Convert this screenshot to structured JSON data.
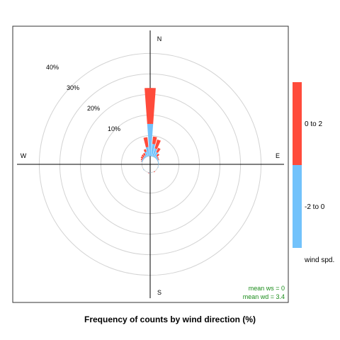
{
  "chart_data": {
    "type": "windrose",
    "title": "Frequency of counts by wind direction (%)",
    "direction_labels": {
      "north": "N",
      "east": "E",
      "south": "S",
      "west": "W"
    },
    "radial_ticks": [
      {
        "value": 10,
        "label": "10%"
      },
      {
        "value": 20,
        "label": "20%"
      },
      {
        "value": 30,
        "label": "30%"
      },
      {
        "value": 40,
        "label": "40%"
      }
    ],
    "radial_max": 50,
    "inner_offset": 4,
    "grid": true,
    "legend": {
      "title": "wind spd.",
      "position": "right",
      "entries": [
        {
          "label": "0 to 2",
          "color": "#FF4B3B"
        },
        {
          "label": "-2 to 0",
          "color": "#72C2FB"
        }
      ]
    },
    "series": [
      {
        "name": "-2 to 0",
        "color": "#72C2FB"
      },
      {
        "name": "0 to 2",
        "color": "#FF4B3B"
      }
    ],
    "sector_width_deg": 10,
    "sectors": [
      {
        "direction": 0,
        "values": [
          15.7,
          17.5
        ]
      },
      {
        "direction": 10,
        "values": [
          6.0,
          3.6
        ]
      },
      {
        "direction": 20,
        "values": [
          4.1,
          4.5
        ]
      },
      {
        "direction": 30,
        "values": [
          2.7,
          2.3
        ]
      },
      {
        "direction": 40,
        "values": [
          1.1,
          1.4
        ]
      },
      {
        "direction": 50,
        "values": [
          0.7,
          0.5
        ]
      },
      {
        "direction": 60,
        "values": [
          0.6,
          0.3
        ]
      },
      {
        "direction": 70,
        "values": [
          0.3,
          0.0
        ]
      },
      {
        "direction": 80,
        "values": [
          0.3,
          0.0
        ]
      },
      {
        "direction": 90,
        "values": [
          0.3,
          0.0
        ]
      },
      {
        "direction": 110,
        "values": [
          0.2,
          0.0
        ]
      },
      {
        "direction": 150,
        "values": [
          0.0,
          0.3
        ]
      },
      {
        "direction": 180,
        "values": [
          0.2,
          0.0
        ]
      },
      {
        "direction": 190,
        "values": [
          0.2,
          0.2
        ]
      },
      {
        "direction": 230,
        "values": [
          0.2,
          0.0
        ]
      },
      {
        "direction": 290,
        "values": [
          0.4,
          0.2
        ]
      },
      {
        "direction": 300,
        "values": [
          0.5,
          0.6
        ]
      },
      {
        "direction": 310,
        "values": [
          0.5,
          1.2
        ]
      },
      {
        "direction": 320,
        "values": [
          0.7,
          1.3
        ]
      },
      {
        "direction": 330,
        "values": [
          1.0,
          1.2
        ]
      },
      {
        "direction": 340,
        "values": [
          2.4,
          1.3
        ]
      },
      {
        "direction": 350,
        "values": [
          4.5,
          4.8
        ]
      }
    ],
    "stats": {
      "mean_ws_label": "mean ws =  0",
      "mean_wd_label": "mean wd =  3.4",
      "color": "#1A8C1A"
    }
  }
}
